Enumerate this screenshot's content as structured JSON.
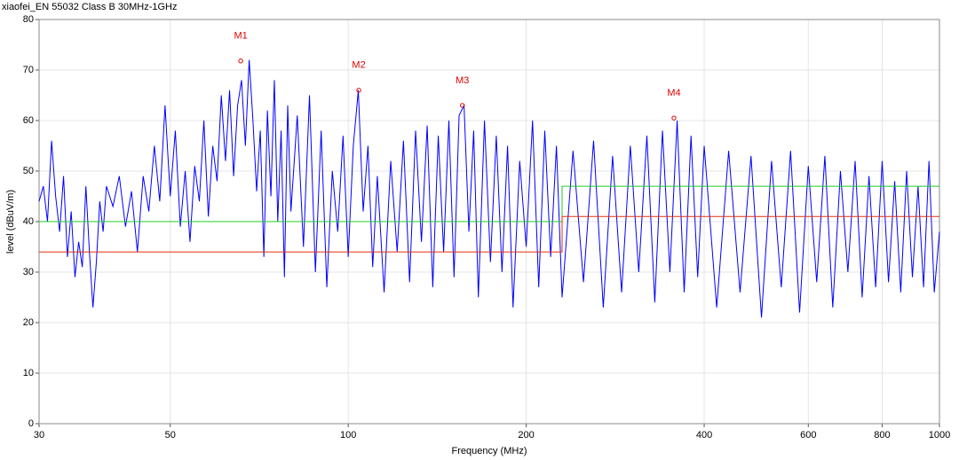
{
  "chart_data": {
    "type": "line",
    "title": "xiaofei_EN 55032 Class B 30MHz-1GHz",
    "xlabel": "Frequency (MHz)",
    "ylabel": "level (dBuV/m)",
    "xscale": "log",
    "grid": true,
    "xlim": [
      30,
      1000
    ],
    "xticks": [
      30,
      50,
      100,
      200,
      400,
      600,
      800,
      1000
    ],
    "ylim": [
      0,
      80
    ],
    "yticks": [
      0,
      10,
      20,
      30,
      40,
      50,
      60,
      70,
      80
    ],
    "series": [
      {
        "color": "#0000ff",
        "x": [
          30,
          30.5,
          31,
          31.5,
          32,
          32.5,
          33,
          33.5,
          34,
          34.5,
          35,
          35.5,
          36,
          36.5,
          37,
          37.5,
          38,
          38.5,
          39,
          40,
          41,
          42,
          43,
          44,
          45,
          46,
          47,
          48,
          49,
          50,
          51,
          52,
          53,
          54,
          55,
          56,
          57,
          58,
          59,
          60,
          61,
          62,
          63,
          64,
          65,
          66,
          67,
          68,
          69,
          70,
          71,
          72,
          73,
          74,
          75,
          76,
          77,
          78,
          79,
          80,
          82,
          84,
          86,
          88,
          90,
          92,
          94,
          96,
          98,
          100,
          102,
          104,
          106,
          108,
          110,
          112,
          115,
          118,
          121,
          124,
          127,
          130,
          133,
          136,
          139,
          142,
          145,
          148,
          151,
          154,
          157,
          160,
          163,
          166,
          170,
          174,
          178,
          182,
          186,
          190,
          195,
          200,
          205,
          210,
          215,
          220,
          225,
          230,
          240,
          250,
          260,
          270,
          280,
          290,
          300,
          310,
          320,
          330,
          340,
          350,
          360,
          370,
          380,
          390,
          400,
          420,
          440,
          460,
          480,
          500,
          520,
          540,
          560,
          580,
          600,
          620,
          640,
          660,
          680,
          700,
          720,
          740,
          760,
          780,
          800,
          820,
          840,
          860,
          880,
          900,
          920,
          940,
          960,
          980,
          1000
        ],
        "values": [
          44,
          47,
          40,
          56,
          45,
          38,
          49,
          33,
          42,
          29,
          36,
          31,
          47,
          34,
          23,
          32,
          44,
          38,
          47,
          43,
          49,
          39,
          46,
          34,
          49,
          42,
          55,
          44,
          63,
          45,
          58,
          39,
          50,
          36,
          51,
          44,
          60,
          41,
          55,
          48,
          65,
          52,
          66,
          49,
          63,
          68,
          55,
          72,
          60,
          46,
          58,
          33,
          62,
          45,
          68,
          40,
          58,
          29,
          63,
          42,
          61,
          35,
          65,
          30,
          58,
          27,
          50,
          38,
          57,
          33,
          55,
          66,
          42,
          55,
          31,
          49,
          26,
          52,
          34,
          56,
          28,
          58,
          36,
          59,
          27,
          57,
          34,
          60,
          29,
          61,
          63,
          38,
          58,
          25,
          60,
          32,
          57,
          30,
          55,
          23,
          52,
          35,
          60,
          27,
          58,
          33,
          55,
          25,
          54,
          28,
          56,
          23,
          53,
          26,
          55,
          30,
          57,
          24,
          58,
          30,
          60,
          26,
          57,
          29,
          55,
          23,
          54,
          26,
          53,
          21,
          52,
          27,
          54,
          22,
          51,
          28,
          53,
          23,
          50,
          30,
          52,
          25,
          49,
          27,
          52,
          28,
          48,
          26,
          50,
          29,
          47,
          27,
          52,
          26,
          38
        ]
      },
      {
        "color": "#22cc22",
        "x": [
          30,
          230,
          230,
          1000
        ],
        "values": [
          40,
          40,
          47,
          47
        ]
      },
      {
        "color": "#e03010",
        "x": [
          30,
          230,
          230,
          1000
        ],
        "values": [
          34,
          34,
          41,
          41
        ]
      }
    ],
    "marker_color": "#e00000",
    "markers": [
      {
        "label": "M1",
        "x": 65.8,
        "value": 71.8
      },
      {
        "label": "M2",
        "x": 104.2,
        "value": 66
      },
      {
        "label": "M3",
        "x": 156,
        "value": 63
      },
      {
        "label": "M4",
        "x": 355.6,
        "value": 60.5
      }
    ]
  }
}
